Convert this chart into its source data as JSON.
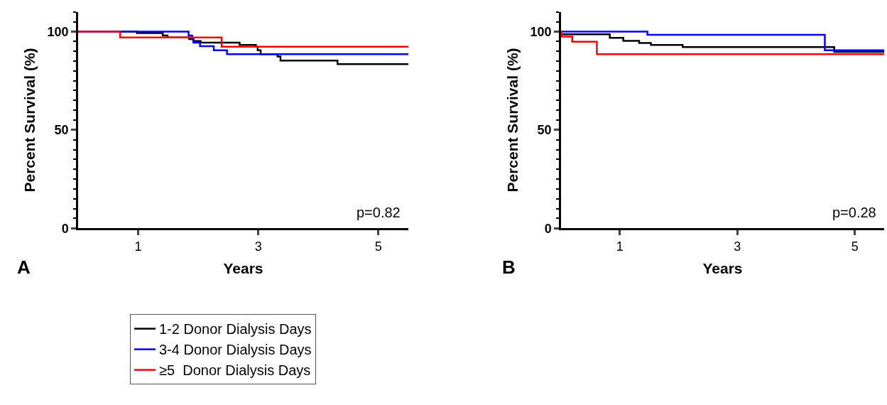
{
  "chart_data": [
    {
      "type": "step",
      "xlabel": "Years",
      "ylabel": "Percent Survival (%)",
      "xlim": [
        0,
        5.5
      ],
      "xticks": [
        1,
        3,
        5
      ],
      "ylim": [
        0,
        110
      ],
      "yticks": [
        0,
        50,
        100
      ],
      "legend": "bottom",
      "annotations": [
        "p=0.82",
        "A"
      ],
      "series": [
        {
          "name": "1-2 Donor Dialysis Days",
          "color": "#000000",
          "x": [
            0,
            0.98,
            1.41,
            1.49,
            1.85,
            1.92,
            2.04,
            2.69,
            2.96,
            2.99,
            3.04,
            3.32,
            3.37,
            4.32,
            5.5
          ],
          "values": [
            100,
            99.2,
            98.0,
            97.0,
            96.2,
            95.2,
            94.4,
            93.2,
            92.3,
            90.5,
            88.5,
            87.3,
            85.2,
            83.4,
            83.4
          ]
        },
        {
          "name": "3-4 Donor Dialysis Days",
          "color": "#0000ff",
          "x": [
            0,
            1.84,
            1.9,
            1.92,
            2.03,
            2.26,
            2.48,
            5.5
          ],
          "values": [
            100,
            98.0,
            96.0,
            94.4,
            92.6,
            90.5,
            88.5,
            88.5
          ]
        },
        {
          "name": "≥5  Donor Dialysis Days",
          "color": "#ff0000",
          "x": [
            0,
            0.7,
            2.39,
            5.5
          ],
          "values": [
            100,
            97.0,
            92.3,
            92.3
          ]
        }
      ]
    },
    {
      "type": "step",
      "xlabel": "Years",
      "ylabel": "Percent Survival (%)",
      "xlim": [
        0,
        5.5
      ],
      "xticks": [
        1,
        3,
        5
      ],
      "ylim": [
        0,
        110
      ],
      "yticks": [
        0,
        50,
        100
      ],
      "annotations": [
        "p=0.28",
        "B"
      ],
      "series": [
        {
          "color": "#000000",
          "x": [
            0,
            0.01,
            0.83,
            1.06,
            1.33,
            1.53,
            2.07,
            4.65,
            5.5
          ],
          "values": [
            100,
            98.6,
            96.8,
            95.3,
            94.2,
            93.2,
            92.1,
            89.7,
            89.7
          ]
        },
        {
          "color": "#0000ff",
          "x": [
            0,
            1.47,
            4.49,
            5.5
          ],
          "values": [
            100,
            98.3,
            90.5,
            90.5
          ]
        },
        {
          "color": "#ff0000",
          "x": [
            0,
            0.01,
            0.19,
            0.61,
            5.5
          ],
          "values": [
            100,
            97.4,
            94.8,
            88.5,
            88.5
          ]
        }
      ]
    }
  ]
}
